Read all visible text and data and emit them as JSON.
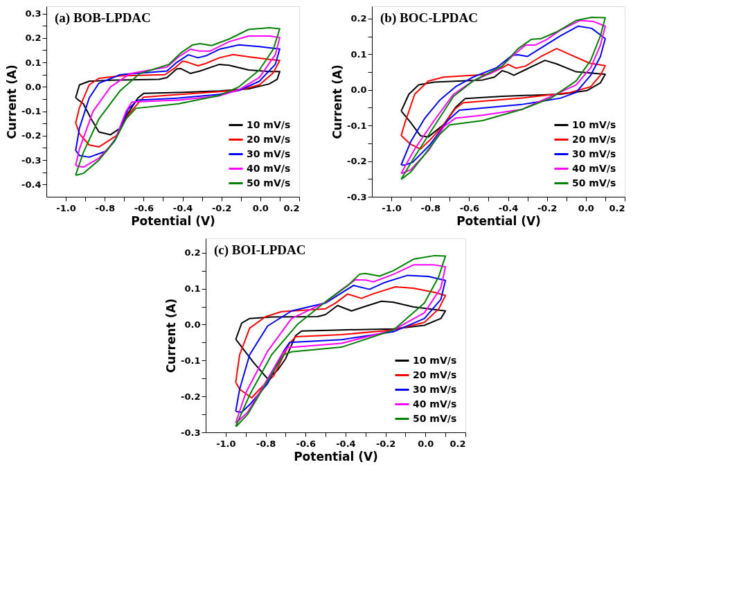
{
  "chart_data": [
    {
      "type": "line",
      "title": "(a) BOB-LPDAC",
      "xlabel": "Potential (V)",
      "ylabel": "Current (A)",
      "legend": "bottom right",
      "grid": false,
      "line_style": "solid",
      "xlim": [
        -1.1,
        0.2
      ],
      "ylim": [
        -0.45,
        0.33
      ],
      "xticks": [
        {
          "value": -1.0,
          "label": "-1.0"
        },
        {
          "value": -0.9,
          "label": null
        },
        -0.8,
        {
          "value": -0.7,
          "label": null
        },
        -0.6,
        {
          "value": -0.5,
          "label": null
        },
        -0.4,
        {
          "value": -0.3,
          "label": null
        },
        -0.2,
        {
          "value": -0.1,
          "label": null
        },
        {
          "value": 0,
          "label": "0.0"
        },
        {
          "value": 0.1,
          "label": null
        },
        0.2
      ],
      "yticks": [
        -0.4,
        {
          "value": -0.35,
          "label": null
        },
        -0.3,
        {
          "value": -0.25,
          "label": null
        },
        -0.2,
        {
          "value": -0.15,
          "label": null
        },
        -0.1,
        {
          "value": -0.05,
          "label": null
        },
        {
          "value": 0,
          "label": "0.0"
        },
        {
          "value": 0.05,
          "label": null
        },
        0.1,
        {
          "value": 0.15,
          "label": null
        },
        0.2,
        {
          "value": 0.25,
          "label": null
        },
        0.3
      ],
      "series": [
        {
          "name": "10 mV/s",
          "color": "#000000",
          "x": [
            -0.95,
            -0.93,
            -0.88,
            -0.77,
            -0.52,
            -0.48,
            -0.43,
            -0.41,
            -0.36,
            -0.31,
            -0.21,
            -0.16,
            -0.06,
            0.046,
            0.1,
            0.087,
            0.046,
            -0.06,
            -0.21,
            -0.42,
            -0.6,
            -0.63,
            -0.68,
            -0.72,
            -0.77,
            -0.83,
            -0.87,
            -0.91,
            -0.948
          ],
          "values": [
            -0.046,
            0.008,
            0.023,
            0.027,
            0.031,
            0.038,
            0.073,
            0.075,
            0.055,
            0.065,
            0.092,
            0.088,
            0.069,
            0.063,
            0.063,
            0.031,
            0.012,
            -0.008,
            -0.017,
            -0.023,
            -0.027,
            -0.046,
            -0.108,
            -0.169,
            -0.196,
            -0.185,
            -0.131,
            -0.069,
            -0.046
          ]
        },
        {
          "name": "20 mV/s",
          "color": "#ff0000",
          "x": [
            -0.95,
            -0.93,
            -0.88,
            -0.83,
            -0.72,
            -0.49,
            -0.44,
            -0.4,
            -0.37,
            -0.32,
            -0.28,
            -0.21,
            -0.14,
            -0.06,
            0.046,
            0.1,
            0.067,
            -0.005,
            -0.11,
            -0.31,
            -0.6,
            -0.63,
            -0.68,
            -0.74,
            -0.83,
            -0.88,
            -0.93,
            -0.948
          ],
          "values": [
            -0.15,
            -0.085,
            0.008,
            0.035,
            0.045,
            0.05,
            0.077,
            0.105,
            0.1,
            0.086,
            0.096,
            0.119,
            0.132,
            0.123,
            0.112,
            0.108,
            0.058,
            0.008,
            -0.014,
            -0.025,
            -0.042,
            -0.069,
            -0.115,
            -0.2,
            -0.246,
            -0.238,
            -0.192,
            -0.15
          ]
        },
        {
          "name": "30 mV/s",
          "color": "#0000ff",
          "x": [
            -0.95,
            -0.93,
            -0.88,
            -0.83,
            -0.72,
            -0.48,
            -0.43,
            -0.37,
            -0.32,
            -0.28,
            -0.21,
            -0.11,
            -0.005,
            0.1,
            0.077,
            -0.005,
            -0.11,
            -0.21,
            -0.42,
            -0.63,
            -0.68,
            -0.74,
            -0.79,
            -0.88,
            -0.93,
            -0.948
          ],
          "values": [
            -0.262,
            -0.169,
            -0.046,
            0.015,
            0.05,
            0.065,
            0.1,
            0.131,
            0.119,
            0.127,
            0.154,
            0.172,
            0.165,
            0.155,
            0.092,
            0.023,
            -0.015,
            -0.031,
            -0.046,
            -0.054,
            -0.092,
            -0.208,
            -0.262,
            -0.288,
            -0.281,
            -0.262
          ]
        },
        {
          "name": "40 mV/s",
          "color": "#ff00ff",
          "x": [
            -0.95,
            -0.93,
            -0.86,
            -0.77,
            -0.67,
            -0.48,
            -0.42,
            -0.36,
            -0.31,
            -0.26,
            -0.16,
            -0.06,
            0.046,
            0.1,
            0.077,
            -0.005,
            -0.11,
            -0.21,
            -0.42,
            -0.66,
            -0.69,
            -0.75,
            -0.83,
            -0.91,
            -0.948
          ],
          "values": [
            -0.323,
            -0.254,
            -0.1,
            0.0,
            0.054,
            0.081,
            0.123,
            0.154,
            0.146,
            0.146,
            0.185,
            0.208,
            0.208,
            0.202,
            0.131,
            0.038,
            -0.012,
            -0.037,
            -0.054,
            -0.062,
            -0.1,
            -0.223,
            -0.292,
            -0.329,
            -0.323
          ]
        },
        {
          "name": "50 mV/s",
          "color": "#008000",
          "x": [
            -0.95,
            -0.91,
            -0.83,
            -0.72,
            -0.62,
            -0.47,
            -0.41,
            -0.35,
            -0.31,
            -0.25,
            -0.16,
            -0.06,
            0.046,
            0.1,
            0.067,
            -0.005,
            -0.11,
            -0.21,
            -0.42,
            -0.64,
            -0.69,
            -0.75,
            -0.83,
            -0.91,
            -0.948
          ],
          "values": [
            -0.362,
            -0.269,
            -0.131,
            -0.015,
            0.054,
            0.092,
            0.138,
            0.171,
            0.177,
            0.169,
            0.196,
            0.235,
            0.242,
            0.238,
            0.154,
            0.069,
            0.0,
            -0.035,
            -0.069,
            -0.088,
            -0.131,
            -0.223,
            -0.3,
            -0.354,
            -0.362
          ]
        }
      ]
    },
    {
      "type": "line",
      "title": "(b) BOC-LPDAC",
      "xlabel": "Potential (V)",
      "ylabel": "Current (A)",
      "legend": "bottom right",
      "grid": false,
      "line_style": "solid",
      "xlim": [
        -1.1,
        0.2
      ],
      "ylim": [
        -0.3,
        0.235
      ],
      "xticks": [
        {
          "value": -1.0,
          "label": "-1.0"
        },
        {
          "value": -0.9,
          "label": null
        },
        -0.8,
        {
          "value": -0.7,
          "label": null
        },
        -0.6,
        {
          "value": -0.5,
          "label": null
        },
        -0.4,
        {
          "value": -0.3,
          "label": null
        },
        -0.2,
        {
          "value": -0.1,
          "label": null
        },
        {
          "value": 0,
          "label": "0.0"
        },
        {
          "value": 0.1,
          "label": null
        },
        0.2
      ],
      "yticks": [
        -0.3,
        {
          "value": -0.25,
          "label": null
        },
        -0.2,
        {
          "value": -0.15,
          "label": null
        },
        -0.1,
        {
          "value": -0.05,
          "label": null
        },
        {
          "value": 0,
          "label": "0.0"
        },
        {
          "value": 0.05,
          "label": null
        },
        0.1,
        {
          "value": 0.15,
          "label": null
        },
        0.2
      ],
      "series": [
        {
          "name": "10 mV/s",
          "color": "#000000",
          "x": [
            -0.95,
            -0.91,
            -0.86,
            -0.78,
            -0.53,
            -0.47,
            -0.43,
            -0.4,
            -0.37,
            -0.31,
            -0.21,
            -0.15,
            -0.05,
            0.1,
            0.075,
            0.005,
            -0.13,
            -0.43,
            -0.62,
            -0.67,
            -0.73,
            -0.81,
            -0.85,
            -0.9,
            -0.948
          ],
          "values": [
            -0.06,
            -0.012,
            0.014,
            0.022,
            0.028,
            0.036,
            0.054,
            0.049,
            0.041,
            0.057,
            0.083,
            0.073,
            0.051,
            0.044,
            0.02,
            -0.002,
            -0.012,
            -0.018,
            -0.024,
            -0.049,
            -0.097,
            -0.132,
            -0.129,
            -0.092,
            -0.06
          ]
        },
        {
          "name": "20 mV/s",
          "color": "#ff0000",
          "x": [
            -0.95,
            -0.93,
            -0.88,
            -0.81,
            -0.73,
            -0.5,
            -0.43,
            -0.4,
            -0.36,
            -0.31,
            -0.23,
            -0.15,
            -0.08,
            0.02,
            0.1,
            0.075,
            0.025,
            -0.08,
            -0.33,
            -0.63,
            -0.67,
            -0.73,
            -0.79,
            -0.85,
            -0.9,
            -0.948
          ],
          "values": [
            -0.129,
            -0.092,
            -0.012,
            0.025,
            0.036,
            0.044,
            0.062,
            0.072,
            0.061,
            0.067,
            0.094,
            0.116,
            0.099,
            0.075,
            0.068,
            0.041,
            0.009,
            -0.007,
            -0.023,
            -0.036,
            -0.052,
            -0.097,
            -0.134,
            -0.166,
            -0.153,
            -0.129
          ]
        },
        {
          "name": "30 mV/s",
          "color": "#0000ff",
          "x": [
            -0.95,
            -0.9,
            -0.83,
            -0.75,
            -0.67,
            -0.58,
            -0.46,
            -0.38,
            -0.35,
            -0.3,
            -0.23,
            -0.13,
            -0.04,
            0.03,
            0.1,
            0.075,
            0.025,
            -0.05,
            -0.13,
            -0.33,
            -0.65,
            -0.71,
            -0.8,
            -0.89,
            -0.93,
            -0.948
          ],
          "values": [
            -0.211,
            -0.145,
            -0.081,
            -0.028,
            0.009,
            0.036,
            0.062,
            0.097,
            0.099,
            0.094,
            0.118,
            0.152,
            0.179,
            0.173,
            0.144,
            0.094,
            0.041,
            -0.007,
            -0.023,
            -0.041,
            -0.057,
            -0.086,
            -0.153,
            -0.203,
            -0.211,
            -0.211
          ]
        },
        {
          "name": "40 mV/s",
          "color": "#ff00ff",
          "x": [
            -0.95,
            -0.88,
            -0.78,
            -0.68,
            -0.58,
            -0.45,
            -0.38,
            -0.31,
            -0.26,
            -0.2,
            -0.13,
            -0.03,
            0.04,
            0.1,
            0.075,
            0.025,
            -0.05,
            -0.18,
            -0.33,
            -0.53,
            -0.67,
            -0.73,
            -0.81,
            -0.9,
            -0.948
          ],
          "values": [
            -0.235,
            -0.166,
            -0.086,
            -0.012,
            0.025,
            0.057,
            0.094,
            0.126,
            0.126,
            0.142,
            0.168,
            0.195,
            0.192,
            0.179,
            0.126,
            0.062,
            0.014,
            -0.018,
            -0.055,
            -0.071,
            -0.079,
            -0.103,
            -0.171,
            -0.224,
            -0.235
          ]
        },
        {
          "name": "50 mV/s",
          "color": "#008000",
          "x": [
            -0.95,
            -0.88,
            -0.78,
            -0.68,
            -0.58,
            -0.43,
            -0.35,
            -0.28,
            -0.23,
            -0.15,
            -0.05,
            0.03,
            0.1,
            0.075,
            0.025,
            -0.05,
            -0.18,
            -0.33,
            -0.53,
            -0.7,
            -0.75,
            -0.83,
            -0.9,
            -0.948
          ],
          "values": [
            -0.251,
            -0.187,
            -0.102,
            -0.018,
            0.025,
            0.067,
            0.115,
            0.142,
            0.144,
            0.163,
            0.195,
            0.204,
            0.203,
            0.152,
            0.083,
            0.025,
            -0.023,
            -0.055,
            -0.086,
            -0.098,
            -0.124,
            -0.182,
            -0.23,
            -0.251
          ]
        }
      ]
    },
    {
      "type": "line",
      "title": "(c) BOI-LPDAC",
      "xlabel": "Potential (V)",
      "ylabel": "Current (A)",
      "legend": "bottom right",
      "grid": false,
      "line_style": "solid",
      "xlim": [
        -1.1,
        0.2
      ],
      "ylim": [
        -0.3,
        0.24
      ],
      "xticks": [
        {
          "value": -1.0,
          "label": "-1.0"
        },
        {
          "value": -0.9,
          "label": null
        },
        -0.8,
        {
          "value": -0.7,
          "label": null
        },
        -0.6,
        {
          "value": -0.5,
          "label": null
        },
        -0.4,
        {
          "value": -0.3,
          "label": null
        },
        -0.2,
        {
          "value": -0.1,
          "label": null
        },
        {
          "value": 0,
          "label": "0.0"
        },
        {
          "value": 0.1,
          "label": null
        },
        0.2
      ],
      "yticks": [
        -0.3,
        {
          "value": -0.25,
          "label": null
        },
        -0.2,
        {
          "value": -0.15,
          "label": null
        },
        -0.1,
        {
          "value": -0.05,
          "label": null
        },
        {
          "value": 0,
          "label": "0.0"
        },
        {
          "value": 0.05,
          "label": null
        },
        0.1,
        {
          "value": 0.15,
          "label": null
        },
        0.2
      ],
      "series": [
        {
          "name": "10 mV/s",
          "color": "#000000",
          "x": [
            -0.95,
            -0.92,
            -0.88,
            -0.77,
            -0.54,
            -0.5,
            -0.44,
            -0.37,
            -0.31,
            -0.22,
            -0.16,
            -0.06,
            0.1,
            0.077,
            -0.005,
            -0.16,
            -0.42,
            -0.62,
            -0.65,
            -0.7,
            -0.74,
            -0.79,
            -0.86,
            -0.948
          ],
          "values": [
            -0.042,
            0.004,
            0.017,
            0.021,
            0.022,
            0.028,
            0.053,
            0.038,
            0.049,
            0.065,
            0.062,
            0.049,
            0.038,
            0.017,
            -0.002,
            -0.012,
            -0.015,
            -0.018,
            -0.031,
            -0.095,
            -0.127,
            -0.151,
            -0.106,
            -0.042
          ]
        },
        {
          "name": "20 mV/s",
          "color": "#ff0000",
          "x": [
            -0.95,
            -0.93,
            -0.88,
            -0.8,
            -0.72,
            -0.5,
            -0.45,
            -0.39,
            -0.32,
            -0.26,
            -0.15,
            -0.06,
            0.05,
            0.1,
            0.067,
            -0.005,
            -0.16,
            -0.42,
            -0.65,
            -0.68,
            -0.76,
            -0.83,
            -0.87,
            -0.93,
            -0.948
          ],
          "values": [
            -0.162,
            -0.084,
            -0.01,
            0.022,
            0.036,
            0.044,
            0.06,
            0.085,
            0.073,
            0.086,
            0.105,
            0.101,
            0.089,
            0.081,
            0.044,
            0.006,
            -0.015,
            -0.028,
            -0.034,
            -0.052,
            -0.143,
            -0.18,
            -0.204,
            -0.18,
            -0.162
          ]
        },
        {
          "name": "30 mV/s",
          "color": "#0000ff",
          "x": [
            -0.95,
            -0.93,
            -0.88,
            -0.79,
            -0.67,
            -0.5,
            -0.44,
            -0.36,
            -0.28,
            -0.21,
            -0.09,
            0.015,
            0.1,
            0.077,
            -0.005,
            -0.16,
            -0.42,
            -0.68,
            -0.71,
            -0.79,
            -0.88,
            -0.92,
            -0.948
          ],
          "values": [
            -0.242,
            -0.18,
            -0.084,
            -0.004,
            0.038,
            0.06,
            0.081,
            0.109,
            0.098,
            0.116,
            0.137,
            0.134,
            0.123,
            0.07,
            0.017,
            -0.02,
            -0.042,
            -0.05,
            -0.074,
            -0.164,
            -0.223,
            -0.244,
            -0.242
          ]
        },
        {
          "name": "40 mV/s",
          "color": "#ff00ff",
          "x": [
            -0.95,
            -0.9,
            -0.79,
            -0.67,
            -0.5,
            -0.42,
            -0.35,
            -0.3,
            -0.26,
            -0.16,
            -0.06,
            0.046,
            0.1,
            0.077,
            -0.005,
            -0.16,
            -0.42,
            -0.69,
            -0.72,
            -0.81,
            -0.89,
            -0.948
          ],
          "values": [
            -0.274,
            -0.191,
            -0.074,
            0.017,
            0.062,
            0.097,
            0.125,
            0.124,
            0.119,
            0.14,
            0.166,
            0.166,
            0.161,
            0.102,
            0.033,
            -0.015,
            -0.052,
            -0.064,
            -0.084,
            -0.17,
            -0.244,
            -0.274
          ]
        },
        {
          "name": "50 mV/s",
          "color": "#008000",
          "x": [
            -0.95,
            -0.88,
            -0.77,
            -0.64,
            -0.49,
            -0.39,
            -0.33,
            -0.3,
            -0.23,
            -0.16,
            -0.06,
            0.046,
            0.1,
            0.067,
            -0.005,
            -0.16,
            -0.42,
            -0.67,
            -0.71,
            -0.81,
            -0.89,
            -0.948
          ],
          "values": [
            -0.284,
            -0.196,
            -0.084,
            0.001,
            0.068,
            0.108,
            0.14,
            0.142,
            0.135,
            0.15,
            0.182,
            0.192,
            0.191,
            0.134,
            0.06,
            -0.015,
            -0.063,
            -0.076,
            -0.084,
            -0.175,
            -0.25,
            -0.284
          ]
        }
      ]
    }
  ]
}
